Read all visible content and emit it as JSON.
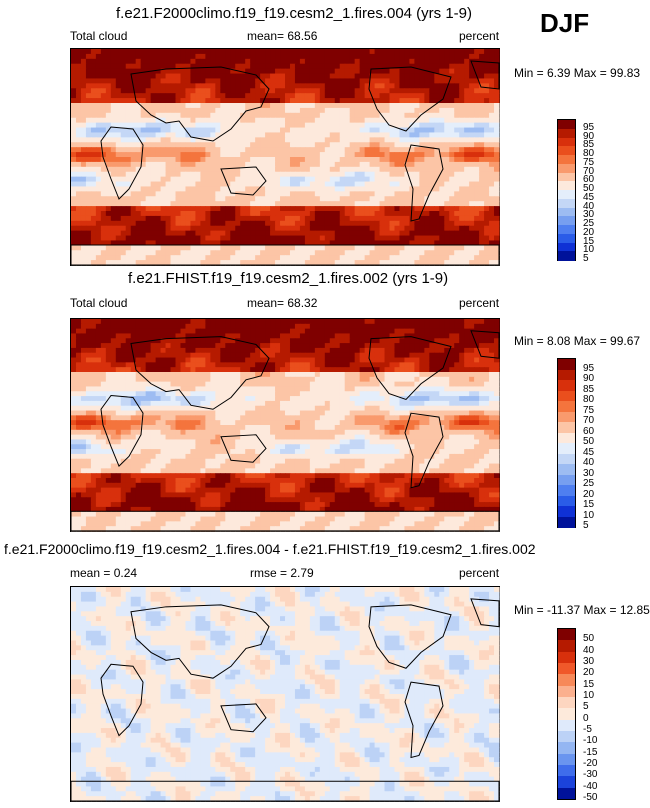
{
  "season": "DJF",
  "chart_data": [
    {
      "type": "heatmap",
      "title": "f.e21.F2000climo.f19_f19.cesm2_1.fires.004 (yrs 1-9)",
      "left_label": "Total cloud",
      "center_label": "mean=  68.56",
      "units": "percent",
      "minmax": "Min =   6.39 Max =  99.83",
      "levels": [
        "95",
        "90",
        "85",
        "80",
        "75",
        "70",
        "60",
        "50",
        "45",
        "40",
        "30",
        "25",
        "20",
        "15",
        "10",
        "5"
      ],
      "colors": [
        "#7f0000",
        "#b51a00",
        "#d8300c",
        "#ea4f1d",
        "#f4743d",
        "#f99a6d",
        "#fcc5a6",
        "#fde9dc",
        "#e4eefb",
        "#c4d7f6",
        "#9dbcf2",
        "#779ff0",
        "#4f7ff0",
        "#2a5ce8",
        "#0f31d5",
        "#00129a"
      ],
      "field_type": "cloud"
    },
    {
      "type": "heatmap",
      "title": "f.e21.FHIST.f19_f19.cesm2_1.fires.002 (yrs 1-9)",
      "left_label": "Total cloud",
      "center_label": "mean=  68.32",
      "units": "percent",
      "minmax": "Min =   8.08 Max =  99.67",
      "levels": [
        "95",
        "90",
        "85",
        "80",
        "75",
        "70",
        "60",
        "50",
        "45",
        "40",
        "30",
        "25",
        "20",
        "15",
        "10",
        "5"
      ],
      "colors": [
        "#7f0000",
        "#b51a00",
        "#d8300c",
        "#ea4f1d",
        "#f4743d",
        "#f99a6d",
        "#fcc5a6",
        "#fde9dc",
        "#e4eefb",
        "#c4d7f6",
        "#9dbcf2",
        "#779ff0",
        "#4f7ff0",
        "#2a5ce8",
        "#0f31d5",
        "#00129a"
      ],
      "field_type": "cloud"
    },
    {
      "type": "heatmap",
      "title": "f.e21.F2000climo.f19_f19.cesm2_1.fires.004 - f.e21.FHIST.f19_f19.cesm2_1.fires.002",
      "left_label": "mean =   0.24",
      "center_label": "rmse =   2.79",
      "units": "percent",
      "minmax": "Min = -11.37 Max =  12.85",
      "levels": [
        "50",
        "40",
        "30",
        "20",
        "15",
        "10",
        "5",
        "0",
        "-5",
        "-10",
        "-15",
        "-20",
        "-30",
        "-40",
        "-50"
      ],
      "colors": [
        "#7f0000",
        "#b51a00",
        "#d8300c",
        "#f0582a",
        "#f78959",
        "#fbb08e",
        "#fdd6c0",
        "#fdeadb",
        "#dfeafb",
        "#bcd2f6",
        "#94b6f2",
        "#6a95ef",
        "#3f6deb",
        "#1b43db",
        "#00129a"
      ],
      "field_type": "difference"
    }
  ]
}
